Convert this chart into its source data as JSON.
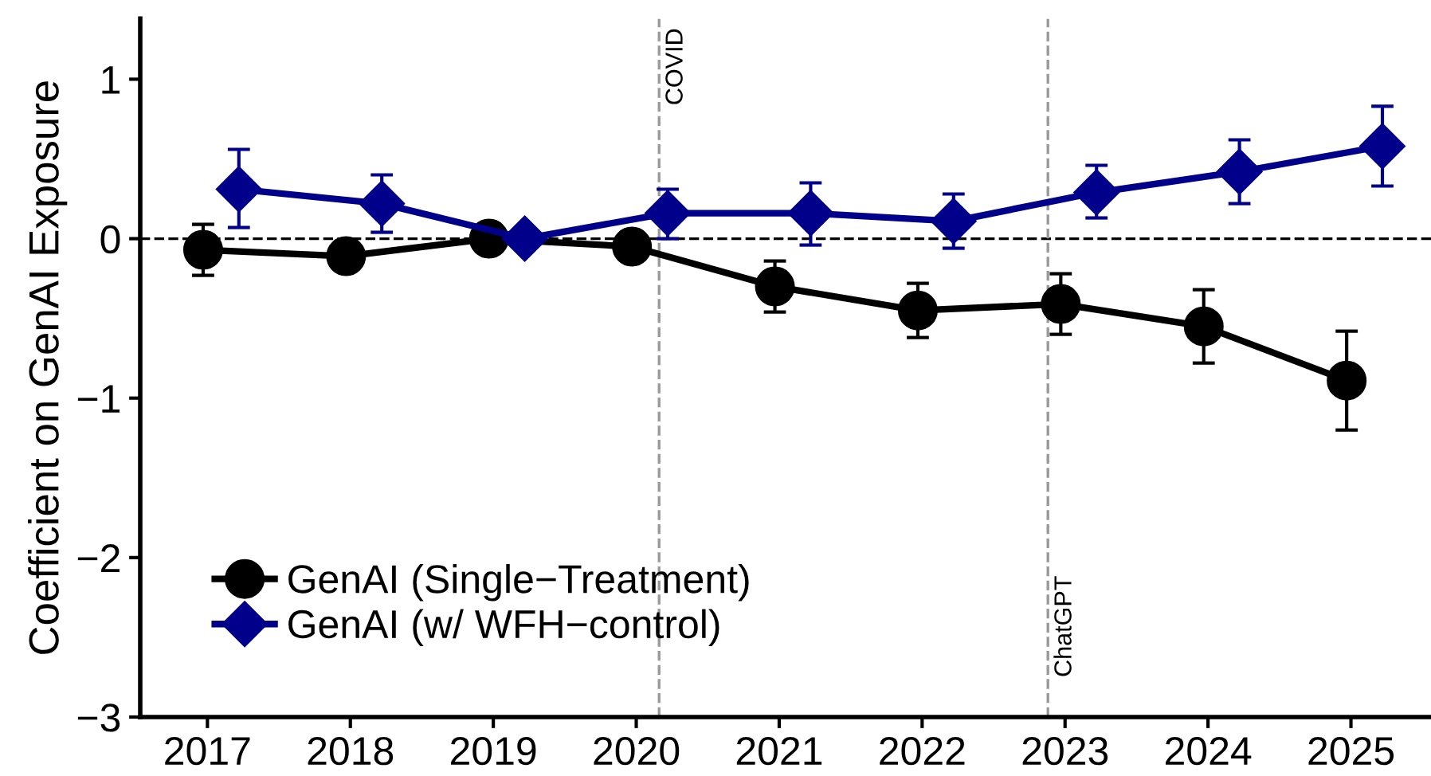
{
  "chart_data": {
    "type": "line",
    "ylabel": "Coefficient on GenAI Exposure",
    "xlim": [
      2016.53,
      2025.56
    ],
    "ylim": [
      -3,
      1.38
    ],
    "xticks": [
      2017,
      2018,
      2019,
      2020,
      2021,
      2022,
      2023,
      2024,
      2025
    ],
    "yticks": [
      {
        "value": -3,
        "label": "−3"
      },
      {
        "value": -2,
        "label": "−2"
      },
      {
        "value": -1,
        "label": "−1"
      },
      0,
      1
    ],
    "grid": false,
    "legend": "bottom left",
    "series": [
      {
        "name": "GenAI (Single−Treatment)",
        "color": "#000000",
        "marker": "circle",
        "x": [
          2016.97,
          2017.97,
          2018.97,
          2019.97,
          2020.97,
          2021.97,
          2022.97,
          2023.97,
          2024.97
        ],
        "values": [
          -0.07,
          -0.11,
          0,
          -0.05,
          -0.3,
          -0.45,
          -0.41,
          -0.55,
          -0.89
        ],
        "errors": [
          [
            -0.23,
            0.09
          ],
          null,
          null,
          null,
          [
            -0.46,
            -0.14
          ],
          [
            -0.62,
            -0.28
          ],
          [
            -0.6,
            -0.22
          ],
          [
            -0.78,
            -0.32
          ],
          [
            -1.2,
            -0.58
          ]
        ]
      },
      {
        "name": "GenAI (w/ WFH−control)",
        "color": "#00008b",
        "marker": "diamond",
        "x": [
          2017.22,
          2018.22,
          2019.22,
          2020.22,
          2021.22,
          2022.22,
          2023.22,
          2024.22,
          2025.22
        ],
        "values": [
          0.31,
          0.22,
          0,
          0.16,
          0.16,
          0.11,
          0.29,
          0.42,
          0.58
        ],
        "errors": [
          [
            0.07,
            0.56
          ],
          [
            0.04,
            0.4
          ],
          null,
          [
            0.0,
            0.31
          ],
          [
            -0.04,
            0.35
          ],
          [
            -0.06,
            0.28
          ],
          [
            0.13,
            0.46
          ],
          [
            0.22,
            0.62
          ],
          [
            0.33,
            0.83
          ]
        ]
      }
    ],
    "ref_lines": [
      {
        "axis": "y",
        "value": 0,
        "color": "#000000",
        "line_style": "dashed"
      },
      {
        "axis": "x",
        "value": 2020.16,
        "label": "COVID",
        "color": "#999999",
        "line_style": "dashed"
      },
      {
        "axis": "x",
        "value": 2022.88,
        "label": "ChatGPT",
        "color": "#999999",
        "line_style": "dashed"
      }
    ]
  }
}
